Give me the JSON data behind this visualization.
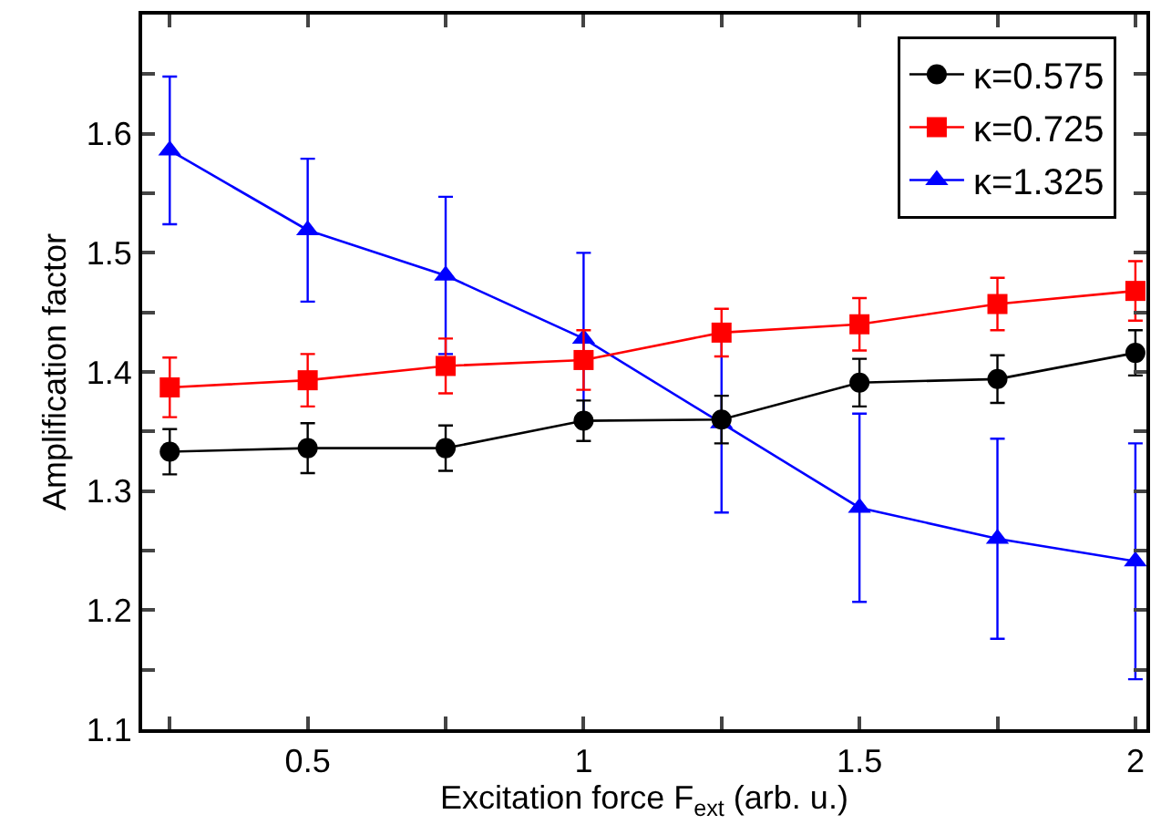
{
  "chart_data": {
    "type": "line",
    "xlabel": "Excitation force F$_{ext}$ (arb. u.)",
    "ylabel": "Amplification factor",
    "x": [
      0.25,
      0.5,
      0.75,
      1,
      1.25,
      1.5,
      1.75,
      2
    ],
    "series": [
      {
        "name": "κ=0.575",
        "color": "#000000",
        "marker": "circle",
        "values": [
          1.333,
          1.336,
          1.336,
          1.359,
          1.36,
          1.391,
          1.394,
          1.416
        ],
        "errors": [
          0.019,
          0.021,
          0.019,
          0.017,
          0.02,
          0.02,
          0.02,
          0.019
        ]
      },
      {
        "name": "κ=0.725",
        "color": "#ff0000",
        "marker": "square",
        "values": [
          1.387,
          1.393,
          1.405,
          1.41,
          1.433,
          1.44,
          1.457,
          1.468
        ],
        "errors": [
          0.025,
          0.022,
          0.023,
          0.025,
          0.02,
          0.022,
          0.022,
          0.025
        ]
      },
      {
        "name": "κ=1.325",
        "color": "#0000ff",
        "marker": "triangle",
        "values": [
          1.586,
          1.519,
          1.481,
          1.428,
          1.357,
          1.286,
          1.26,
          1.241
        ],
        "errors": [
          0.062,
          0.06,
          0.066,
          0.072,
          0.075,
          0.079,
          0.084,
          0.099
        ]
      }
    ],
    "xlim": [
      0.2,
      2.02
    ],
    "ylim": [
      1.1,
      1.7
    ],
    "xticks": [
      {
        "value": 0.25,
        "label": null
      },
      0.5,
      {
        "value": 0.75,
        "label": null
      },
      1,
      {
        "value": 1.25,
        "label": null
      },
      1.5,
      {
        "value": 1.75,
        "label": null
      },
      2
    ],
    "yticks": [
      1.1,
      {
        "value": 1.15,
        "label": null
      },
      1.2,
      {
        "value": 1.25,
        "label": null
      },
      1.3,
      {
        "value": 1.35,
        "label": null
      },
      1.4,
      {
        "value": 1.45,
        "label": null
      },
      1.5,
      {
        "value": 1.55,
        "label": null
      },
      1.6,
      {
        "value": 1.65,
        "label": null
      }
    ],
    "grid": false,
    "legend": "top right",
    "line_style": "solid"
  }
}
